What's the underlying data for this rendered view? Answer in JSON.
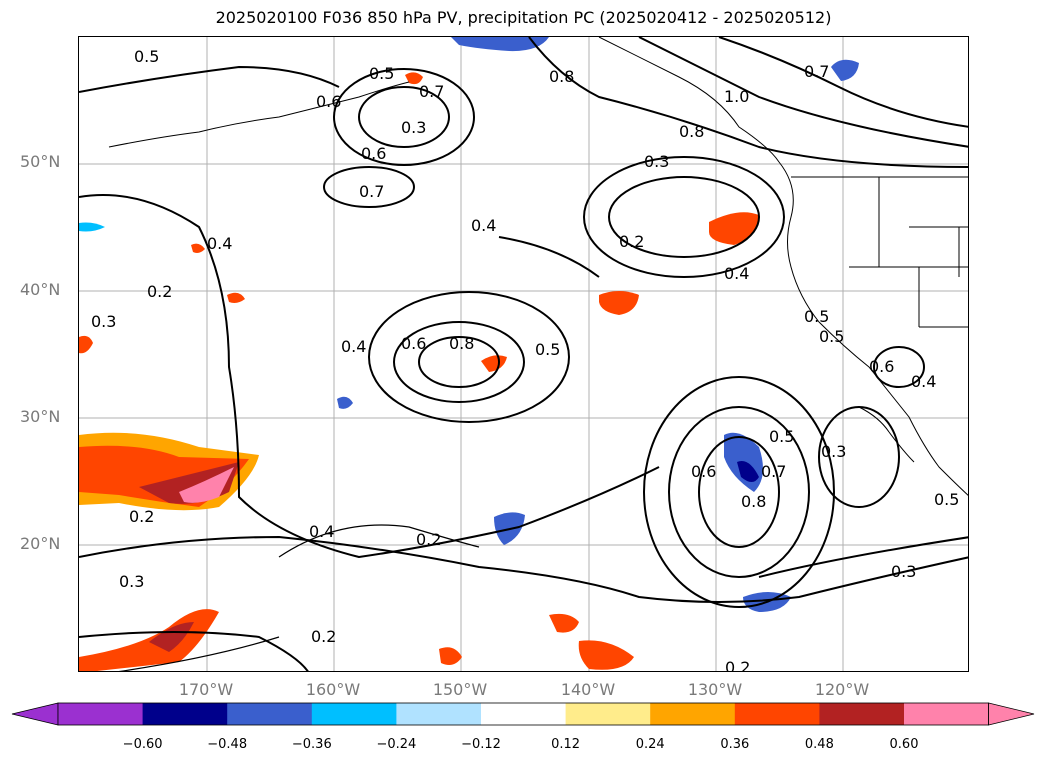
{
  "title": "2025020100 F036 850 hPa PV, precipitation PC (2025020412 - 2025020512)",
  "lat_labels": [
    "50°N",
    "40°N",
    "30°N",
    "20°N"
  ],
  "lon_labels": [
    "170°W",
    "160°W",
    "150°W",
    "140°W",
    "130°W",
    "120°W"
  ],
  "contour_labels": [
    "0.5",
    "0.6",
    "0.5",
    "0.7",
    "0.3",
    "0.8",
    "1.0",
    "0.7",
    "0.8",
    "0.6",
    "0.7",
    "0.3",
    "0.4",
    "0.2",
    "0.2",
    "0.3",
    "0.4",
    "0.6",
    "0.8",
    "0.5",
    "0.4",
    "0.4",
    "0.5",
    "0.5",
    "0.6",
    "0.4",
    "0.6",
    "0.5",
    "0.7",
    "0.8",
    "0.3",
    "0.5",
    "0.2",
    "0.4",
    "0.2",
    "0.3",
    "0.2",
    "0.3",
    "0.2"
  ],
  "colorbar": {
    "ticks": [
      "−0.60",
      "−0.48",
      "−0.36",
      "−0.24",
      "−0.12",
      "0.12",
      "0.24",
      "0.36",
      "0.48",
      "0.60"
    ],
    "colors": [
      "#9b30d0",
      "#00008b",
      "#3a5fcd",
      "#00bfff",
      "#b0e2ff",
      "#ffffff",
      "#ffec8b",
      "#ffa500",
      "#ff4500",
      "#b22222",
      "#ff82ab",
      "#ff82ab"
    ]
  }
}
